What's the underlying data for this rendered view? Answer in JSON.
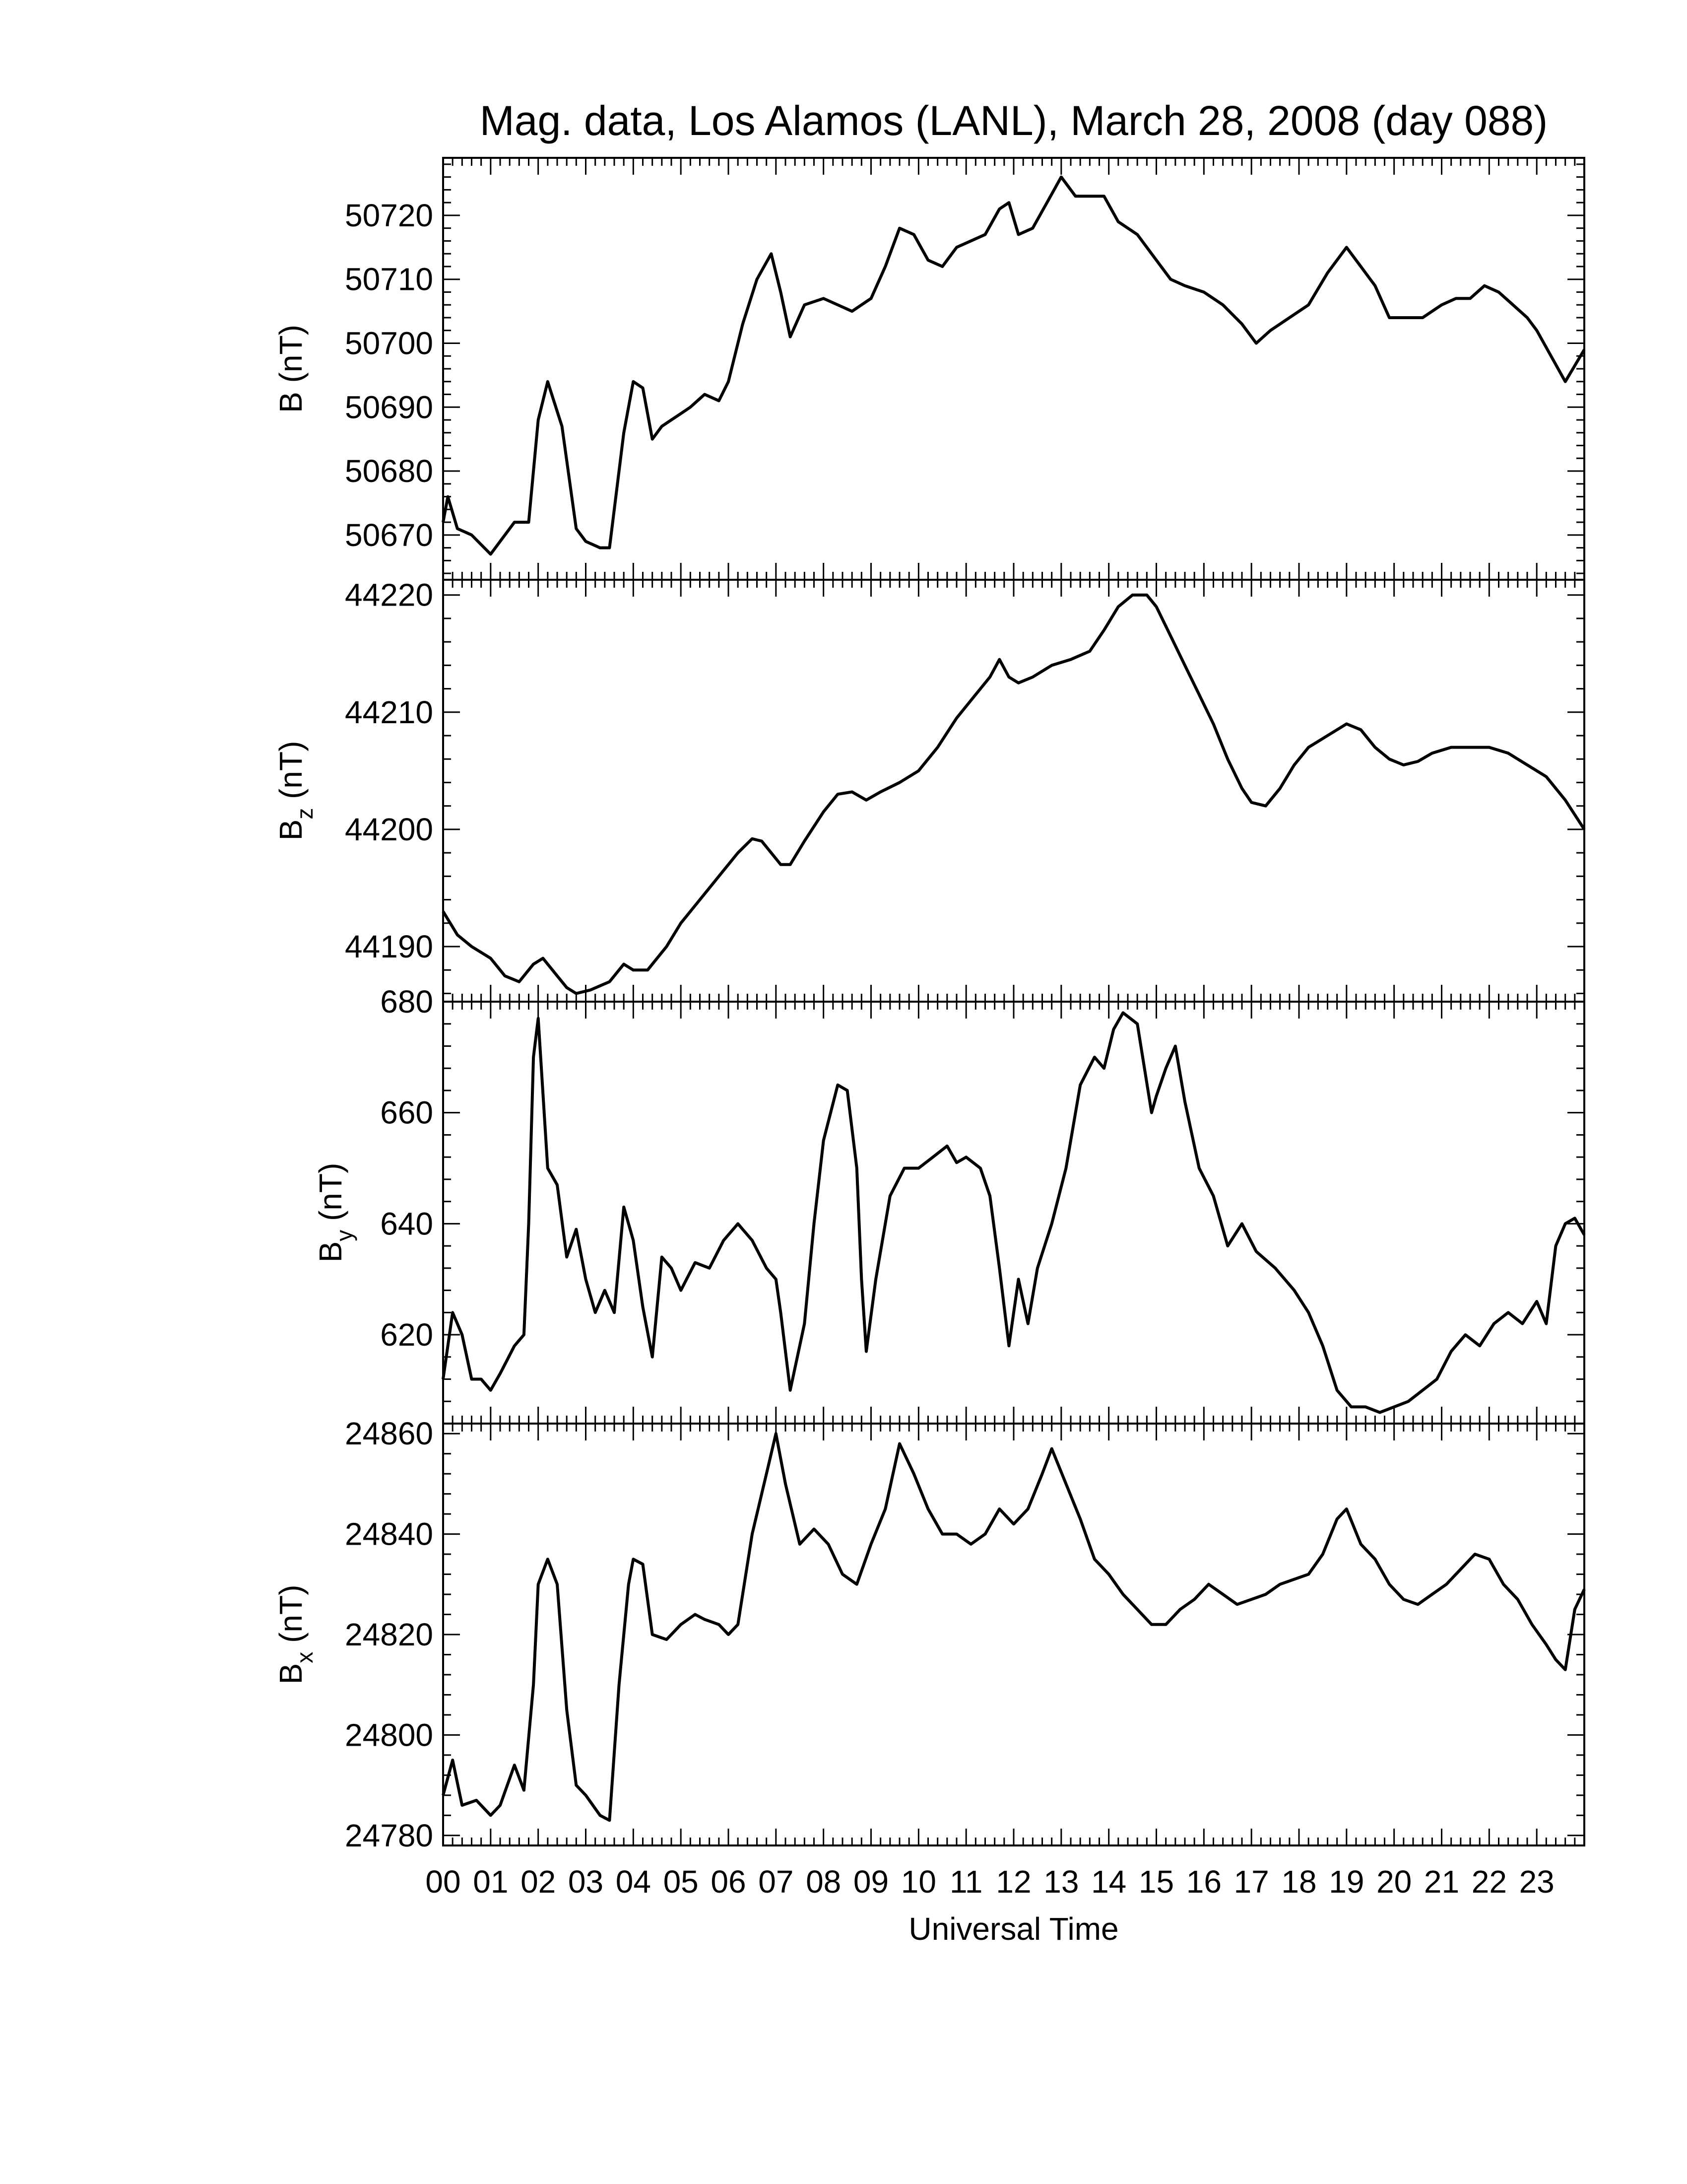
{
  "chart_data": {
    "title": "Mag. data, Los Alamos (LANL), March 28, 2008 (day 088)",
    "xlabel": "Universal Time",
    "x_tick_labels": [
      "00",
      "01",
      "02",
      "03",
      "04",
      "05",
      "06",
      "07",
      "08",
      "09",
      "10",
      "11",
      "12",
      "13",
      "14",
      "15",
      "16",
      "17",
      "18",
      "19",
      "20",
      "21",
      "22",
      "23"
    ],
    "xlim": [
      0,
      24
    ],
    "panels": [
      {
        "type": "line",
        "ylabel_main": "B",
        "ylabel_sub": "",
        "ylabel_unit": " (nT)",
        "ylim": [
          50663,
          50729
        ],
        "yticks": [
          50670,
          50680,
          50690,
          50700,
          50710,
          50720
        ],
        "x": [
          0,
          0.1,
          0.3,
          0.6,
          1.0,
          1.2,
          1.5,
          1.8,
          2.0,
          2.2,
          2.5,
          2.8,
          3.0,
          3.3,
          3.5,
          3.8,
          4.0,
          4.2,
          4.4,
          4.6,
          4.8,
          5.0,
          5.2,
          5.5,
          5.8,
          6.0,
          6.3,
          6.6,
          6.9,
          7.1,
          7.3,
          7.6,
          8.0,
          8.3,
          8.6,
          9.0,
          9.3,
          9.6,
          9.9,
          10.2,
          10.5,
          10.8,
          11.1,
          11.4,
          11.7,
          11.9,
          12.1,
          12.4,
          12.7,
          13.0,
          13.3,
          13.6,
          13.9,
          14.2,
          14.6,
          15.0,
          15.3,
          15.6,
          16.0,
          16.4,
          16.8,
          17.1,
          17.4,
          17.8,
          18.2,
          18.6,
          19.0,
          19.3,
          19.6,
          19.9,
          20.3,
          20.6,
          21.0,
          21.3,
          21.6,
          21.9,
          22.2,
          22.5,
          22.8,
          23.0,
          23.3,
          23.6,
          24.0
        ],
        "y": [
          50672,
          50676,
          50671,
          50670,
          50667,
          50669,
          50672,
          50672,
          50688,
          50694,
          50687,
          50671,
          50669,
          50668,
          50668,
          50686,
          50694,
          50693,
          50685,
          50687,
          50688,
          50689,
          50690,
          50692,
          50691,
          50694,
          50703,
          50710,
          50714,
          50708,
          50701,
          50706,
          50707,
          50706,
          50705,
          50707,
          50712,
          50718,
          50717,
          50713,
          50712,
          50715,
          50716,
          50717,
          50721,
          50722,
          50717,
          50718,
          50722,
          50726,
          50723,
          50723,
          50723,
          50719,
          50717,
          50713,
          50710,
          50709,
          50708,
          50706,
          50703,
          50700,
          50702,
          50704,
          50706,
          50711,
          50715,
          50712,
          50709,
          50704,
          50704,
          50704,
          50706,
          50707,
          50707,
          50709,
          50708,
          50706,
          50704,
          50702,
          50698,
          50694,
          50699
        ]
      },
      {
        "type": "line",
        "ylabel_main": "B",
        "ylabel_sub": "z",
        "ylabel_unit": " (nT)",
        "ylim": [
          44185.3,
          44221.3
        ],
        "yticks": [
          44190,
          44200,
          44210,
          44220
        ],
        "x": [
          0,
          0.3,
          0.6,
          1.0,
          1.3,
          1.6,
          1.9,
          2.1,
          2.4,
          2.6,
          2.8,
          3.1,
          3.5,
          3.8,
          4.0,
          4.3,
          4.7,
          5.0,
          5.4,
          5.8,
          6.2,
          6.5,
          6.7,
          6.9,
          7.1,
          7.3,
          7.6,
          8.0,
          8.3,
          8.6,
          8.9,
          9.2,
          9.6,
          10.0,
          10.4,
          10.8,
          11.2,
          11.5,
          11.7,
          11.9,
          12.1,
          12.4,
          12.8,
          13.2,
          13.6,
          13.9,
          14.2,
          14.5,
          14.8,
          15.0,
          15.3,
          15.6,
          15.9,
          16.2,
          16.5,
          16.8,
          17.0,
          17.3,
          17.6,
          17.9,
          18.2,
          18.6,
          19.0,
          19.3,
          19.6,
          19.9,
          20.2,
          20.5,
          20.8,
          21.2,
          21.6,
          22.0,
          22.4,
          22.8,
          23.2,
          23.6,
          24.0
        ],
        "y": [
          44193,
          44191,
          44190,
          44189,
          44187.5,
          44187,
          44188.5,
          44189,
          44187.5,
          44186.5,
          44186,
          44186.3,
          44187,
          44188.5,
          44188,
          44188,
          44190,
          44192,
          44194,
          44196,
          44198,
          44199.2,
          44199,
          44198,
          44197,
          44197,
          44199,
          44201.5,
          44203,
          44203.2,
          44202.5,
          44203.2,
          44204,
          44205,
          44207,
          44209.5,
          44211.5,
          44213,
          44214.5,
          44213,
          44212.5,
          44213,
          44214,
          44214.5,
          44215.2,
          44217,
          44219,
          44220,
          44220,
          44219,
          44216.5,
          44214,
          44211.5,
          44209,
          44206,
          44203.5,
          44202.3,
          44202,
          44203.5,
          44205.5,
          44207,
          44208,
          44209,
          44208.5,
          44207,
          44206,
          44205.5,
          44205.8,
          44206.5,
          44207,
          44207,
          44207,
          44206.5,
          44205.5,
          44204.5,
          44202.5,
          44200
        ]
      },
      {
        "type": "line",
        "ylabel_main": "B",
        "ylabel_sub": "y",
        "ylabel_unit": " (nT)",
        "ylim": [
          604,
          680
        ],
        "yticks": [
          620,
          640,
          660,
          680
        ],
        "x": [
          0,
          0.2,
          0.4,
          0.6,
          0.8,
          1.0,
          1.2,
          1.5,
          1.7,
          1.8,
          1.9,
          2.0,
          2.2,
          2.4,
          2.6,
          2.8,
          3.0,
          3.2,
          3.4,
          3.6,
          3.8,
          4.0,
          4.2,
          4.4,
          4.6,
          4.8,
          5.0,
          5.3,
          5.6,
          5.9,
          6.2,
          6.5,
          6.8,
          7.0,
          7.1,
          7.3,
          7.6,
          7.8,
          8.0,
          8.3,
          8.5,
          8.7,
          8.8,
          8.9,
          9.1,
          9.4,
          9.7,
          10.0,
          10.3,
          10.6,
          10.8,
          11.0,
          11.3,
          11.5,
          11.7,
          11.9,
          12.1,
          12.3,
          12.5,
          12.8,
          13.1,
          13.4,
          13.7,
          13.9,
          14.1,
          14.3,
          14.6,
          14.9,
          15.0,
          15.2,
          15.4,
          15.6,
          15.9,
          16.2,
          16.5,
          16.8,
          17.1,
          17.5,
          17.9,
          18.2,
          18.5,
          18.8,
          19.1,
          19.4,
          19.7,
          20.0,
          20.3,
          20.6,
          20.9,
          21.2,
          21.5,
          21.8,
          22.1,
          22.4,
          22.7,
          23.0,
          23.2,
          23.4,
          23.6,
          23.8,
          24.0
        ],
        "y": [
          612,
          624,
          620,
          612,
          612,
          610,
          613,
          618,
          620,
          640,
          670,
          677,
          650,
          647,
          634,
          639,
          630,
          624,
          628,
          624,
          643,
          637,
          625,
          616,
          634,
          632,
          628,
          633,
          632,
          637,
          640,
          637,
          632,
          630,
          624,
          610,
          622,
          640,
          655,
          665,
          664,
          650,
          630,
          617,
          630,
          645,
          650,
          650,
          652,
          654,
          651,
          652,
          650,
          645,
          632,
          618,
          630,
          622,
          632,
          640,
          650,
          665,
          670,
          668,
          675,
          678,
          676,
          660,
          663,
          668,
          672,
          662,
          650,
          645,
          636,
          640,
          635,
          632,
          628,
          624,
          618,
          610,
          607,
          607,
          606,
          607,
          608,
          610,
          612,
          617,
          620,
          618,
          622,
          624,
          622,
          626,
          622,
          636,
          640,
          641,
          638
        ]
      },
      {
        "type": "line",
        "ylabel_main": "B",
        "ylabel_sub": "x",
        "ylabel_unit": " (nT)",
        "ylim": [
          24778,
          24862
        ],
        "yticks": [
          24780,
          24800,
          24820,
          24840,
          24860
        ],
        "x": [
          0,
          0.2,
          0.4,
          0.7,
          1.0,
          1.2,
          1.5,
          1.7,
          1.9,
          2.0,
          2.2,
          2.4,
          2.6,
          2.8,
          3.0,
          3.3,
          3.5,
          3.7,
          3.9,
          4.0,
          4.2,
          4.4,
          4.7,
          5.0,
          5.3,
          5.5,
          5.8,
          6.0,
          6.2,
          6.5,
          6.8,
          7.0,
          7.2,
          7.5,
          7.8,
          8.1,
          8.4,
          8.7,
          9.0,
          9.3,
          9.6,
          9.9,
          10.2,
          10.5,
          10.8,
          11.1,
          11.4,
          11.7,
          12.0,
          12.3,
          12.6,
          12.8,
          13.1,
          13.4,
          13.7,
          14.0,
          14.3,
          14.6,
          14.9,
          15.2,
          15.5,
          15.8,
          16.1,
          16.4,
          16.7,
          17.0,
          17.3,
          17.6,
          17.9,
          18.2,
          18.5,
          18.8,
          19.0,
          19.3,
          19.6,
          19.9,
          20.2,
          20.5,
          20.8,
          21.1,
          21.4,
          21.7,
          22.0,
          22.3,
          22.6,
          22.9,
          23.2,
          23.4,
          23.6,
          23.8,
          24.0
        ],
        "y": [
          24788,
          24795,
          24786,
          24787,
          24784,
          24786,
          24794,
          24789,
          24810,
          24830,
          24835,
          24830,
          24805,
          24790,
          24788,
          24784,
          24783,
          24810,
          24830,
          24835,
          24834,
          24820,
          24819,
          24822,
          24824,
          24823,
          24822,
          24820,
          24822,
          24840,
          24852,
          24860,
          24850,
          24838,
          24841,
          24838,
          24832,
          24830,
          24838,
          24845,
          24858,
          24852,
          24845,
          24840,
          24840,
          24838,
          24840,
          24845,
          24842,
          24845,
          24852,
          24857,
          24850,
          24843,
          24835,
          24832,
          24828,
          24825,
          24822,
          24822,
          24825,
          24827,
          24830,
          24828,
          24826,
          24827,
          24828,
          24830,
          24831,
          24832,
          24836,
          24843,
          24845,
          24838,
          24835,
          24830,
          24827,
          24826,
          24828,
          24830,
          24833,
          24836,
          24835,
          24830,
          24827,
          24822,
          24818,
          24815,
          24813,
          24825,
          24829
        ]
      }
    ]
  }
}
